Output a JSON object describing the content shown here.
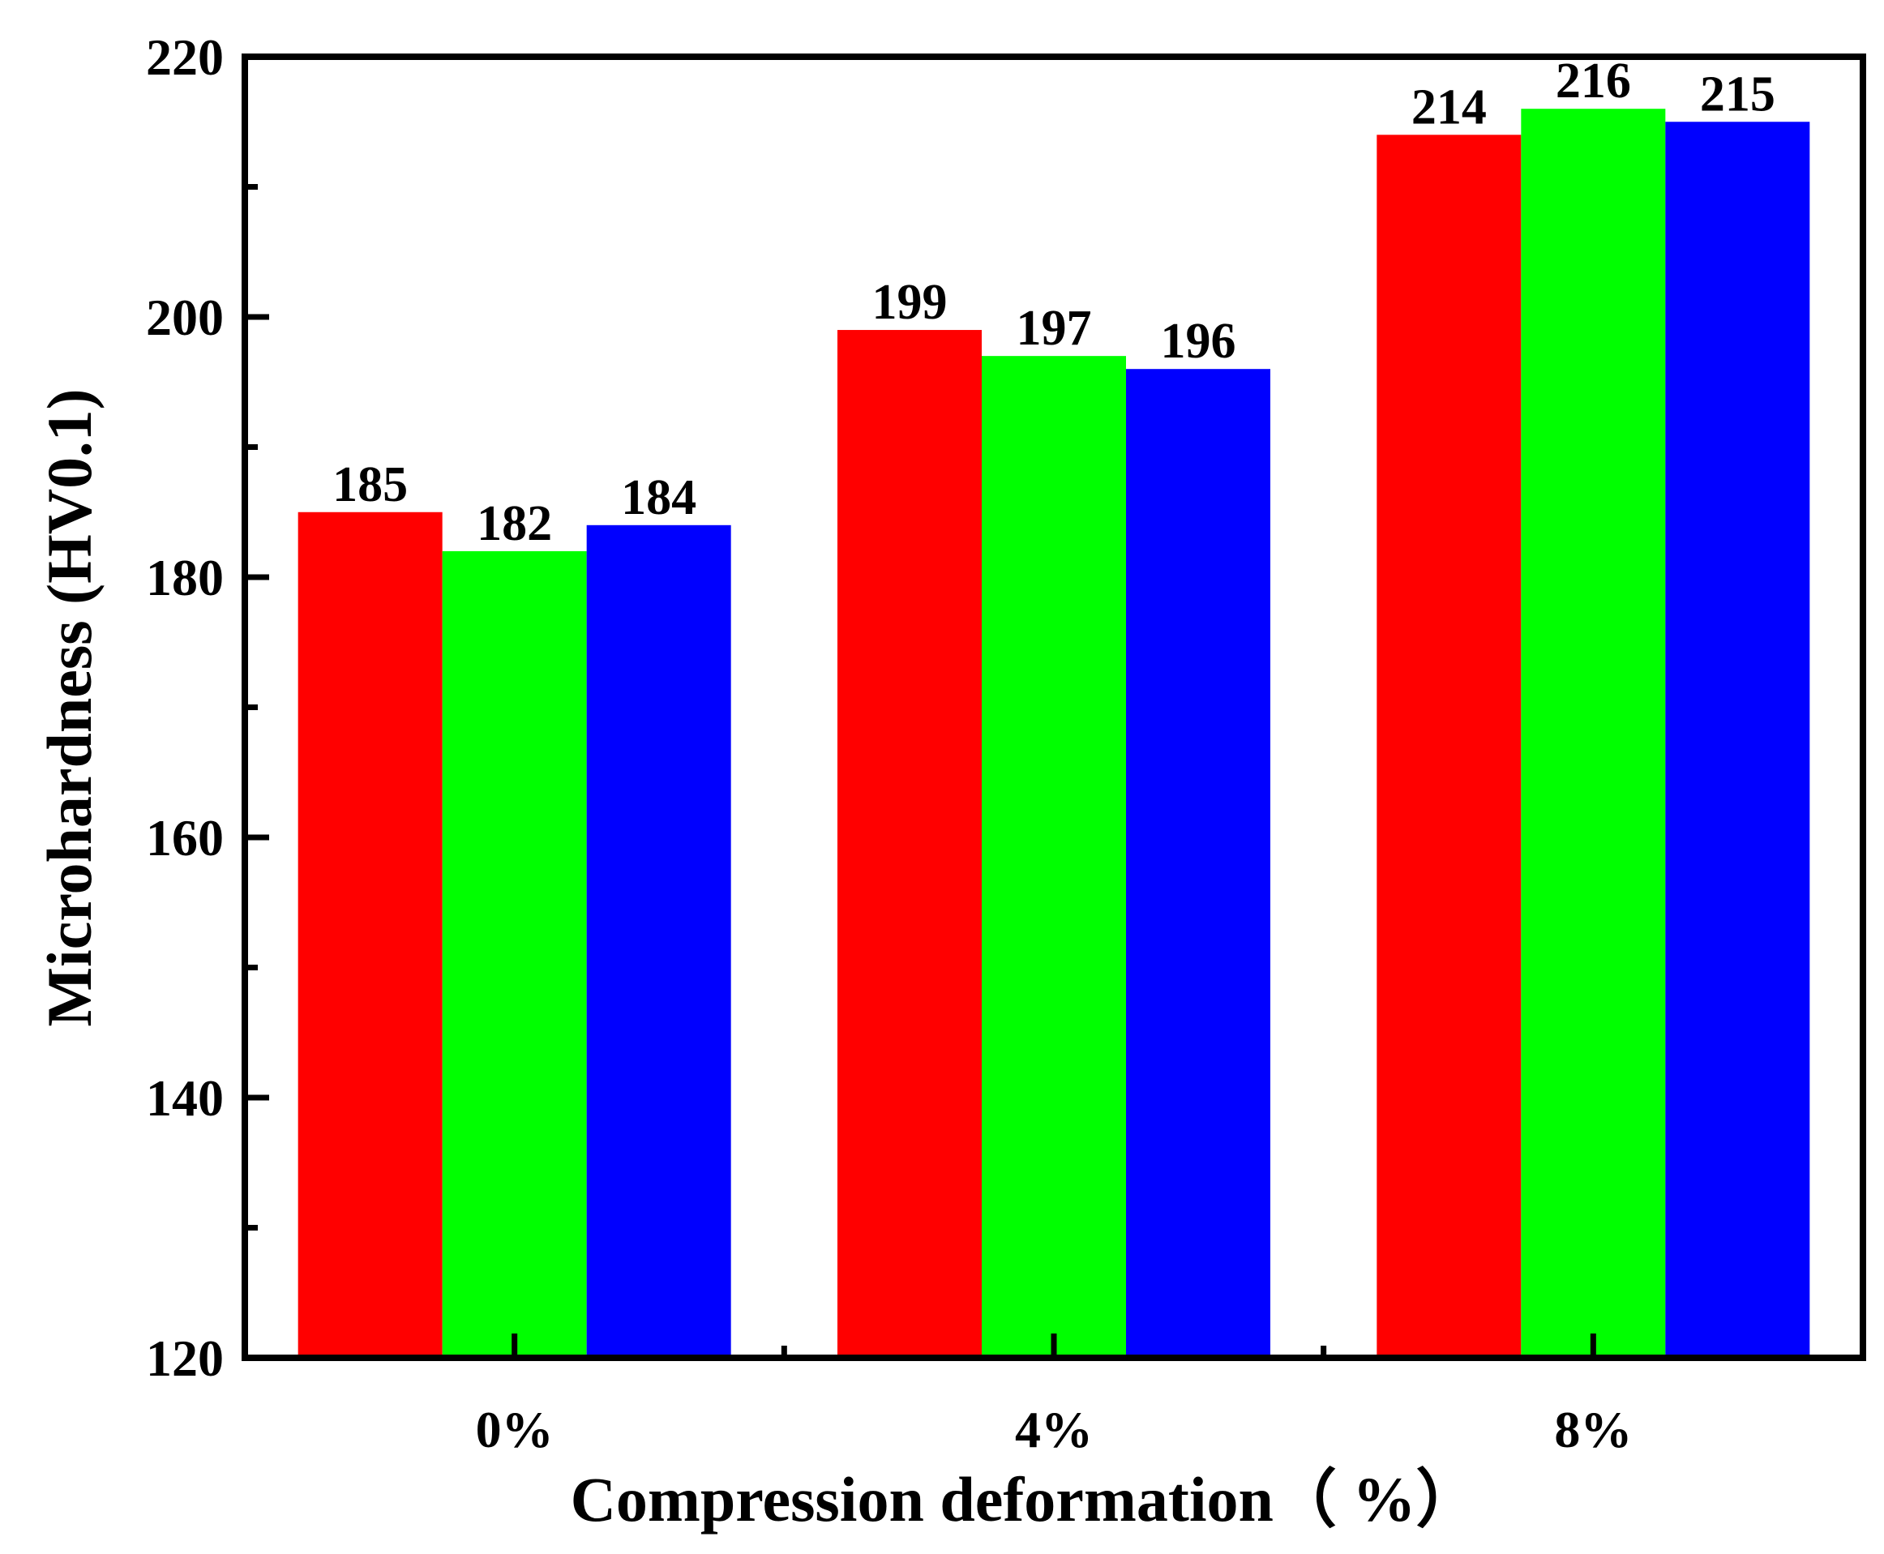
{
  "chart_data": {
    "type": "bar",
    "title": "",
    "xlabel": "Compression deformation（ %）",
    "ylabel": "Microhardness (HV0.1)",
    "categories": [
      "0%",
      "4%",
      "8%"
    ],
    "series": [
      {
        "name": "series-1",
        "color": "#ff0000",
        "values": [
          185,
          199,
          214
        ]
      },
      {
        "name": "series-2",
        "color": "#00ff00",
        "values": [
          182,
          197,
          216
        ]
      },
      {
        "name": "series-3",
        "color": "#0000ff",
        "values": [
          184,
          196,
          215
        ]
      }
    ],
    "ylim": [
      120,
      220
    ],
    "yticks": [
      "120",
      "140",
      "160",
      "180",
      "200",
      "220"
    ],
    "grid": false,
    "legend": "none"
  }
}
